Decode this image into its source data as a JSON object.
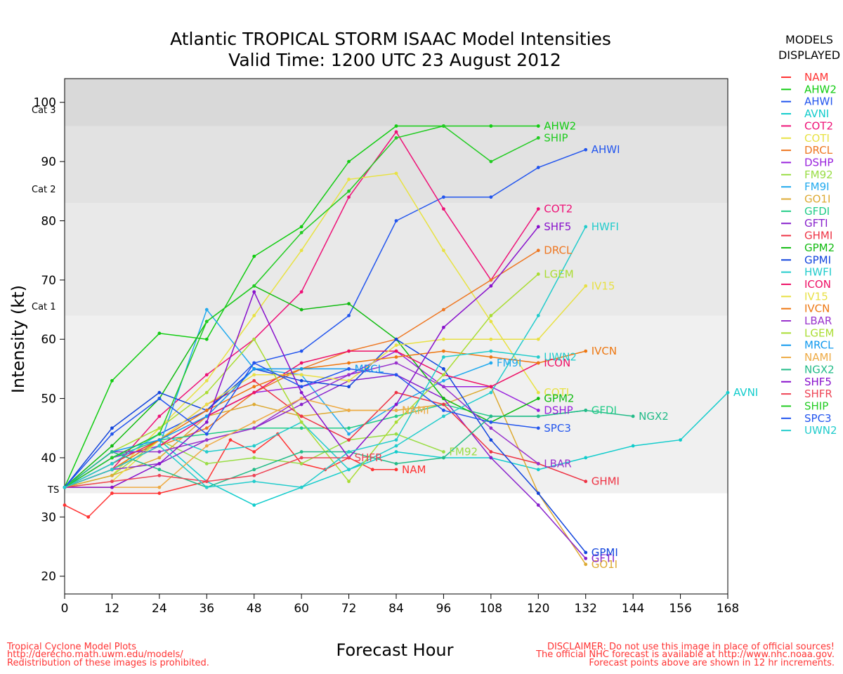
{
  "title_line1": "Atlantic TROPICAL STORM ISAAC Model Intensities",
  "title_line2": "Valid Time: 1200 UTC 23 August 2012",
  "legend_title_line1": "MODELS",
  "legend_title_line2": "DISPLAYED",
  "category_labels": {
    "cat3": "Cat 3",
    "cat2": "Cat 2",
    "cat1": "Cat 1",
    "ts": "TS"
  },
  "footer_left": [
    "Tropical Cyclone Model Plots",
    "http://derecho.math.uwm.edu/models/",
    "Redistribution of these images is prohibited."
  ],
  "footer_right": [
    "DISCLAIMER: Do not use this image in place of official sources!",
    "The official NHC forecast is available at http://www.nhc.noaa.gov.",
    "Forecast points above are shown in 12 hr increments."
  ],
  "chart_data": {
    "type": "line",
    "title": "Atlantic TROPICAL STORM ISAAC Model Intensities",
    "subtitle": "Valid Time: 1200 UTC 23 August 2012",
    "xlabel": "Forecast Hour",
    "ylabel": "Intensity (kt)",
    "xlim": [
      0,
      168
    ],
    "ylim": [
      17,
      104
    ],
    "xticks": [
      0,
      12,
      24,
      36,
      48,
      60,
      72,
      84,
      96,
      108,
      120,
      132,
      144,
      156,
      168
    ],
    "yticks": [
      20,
      30,
      40,
      50,
      60,
      70,
      80,
      90,
      100
    ],
    "bands": [
      {
        "from": 34,
        "to": 64,
        "color": "#f0f0f0"
      },
      {
        "from": 64,
        "to": 83,
        "color": "#e9e9e9"
      },
      {
        "from": 83,
        "to": 96,
        "color": "#e2e2e2"
      },
      {
        "from": 96,
        "to": 104,
        "color": "#d9d9d9"
      }
    ],
    "category_levels": {
      "cat3": 96,
      "cat2": 83,
      "cat1": 64,
      "ts": 34
    },
    "series": [
      {
        "name": "NAM",
        "color": "#ff3333",
        "label": "NAM",
        "x": [
          0,
          6,
          12,
          24,
          36,
          42,
          48,
          54,
          60,
          66,
          72,
          78,
          84
        ],
        "values": [
          32,
          30,
          34,
          34,
          36,
          43,
          41,
          44,
          39,
          38,
          40,
          38,
          38
        ]
      },
      {
        "name": "AHW2",
        "color": "#11cc11",
        "label": "AHW2",
        "x": [
          0,
          12,
          24,
          36,
          48,
          60,
          72,
          84,
          96,
          108,
          120
        ],
        "values": [
          35,
          53,
          61,
          60,
          74,
          79,
          90,
          96,
          96,
          96,
          96
        ]
      },
      {
        "name": "AHWI",
        "color": "#2255ee",
        "label": "AHWI",
        "x": [
          0,
          12,
          24,
          36,
          48,
          60,
          72,
          84,
          96,
          108,
          120,
          132
        ],
        "values": [
          35,
          40,
          44,
          48,
          56,
          58,
          64,
          80,
          84,
          84,
          89,
          92
        ]
      },
      {
        "name": "AVNI",
        "color": "#11cccc",
        "label": "AVNI",
        "x": [
          0,
          12,
          24,
          36,
          48,
          60,
          72,
          84,
          96,
          108,
          120,
          132,
          144,
          156,
          168
        ],
        "values": [
          35,
          39,
          43,
          36,
          32,
          35,
          38,
          41,
          40,
          40,
          38,
          40,
          42,
          43,
          51
        ]
      },
      {
        "name": "COT2",
        "color": "#ee1177",
        "label": "COT2",
        "x": [
          0,
          12,
          24,
          36,
          48,
          60,
          72,
          84,
          96,
          108,
          120
        ],
        "values": [
          35,
          38,
          47,
          54,
          60,
          68,
          84,
          95,
          82,
          70,
          82
        ]
      },
      {
        "name": "COTI",
        "color": "#e8e244",
        "label": "COTI",
        "x": [
          0,
          12,
          24,
          36,
          48,
          60,
          72,
          84,
          96,
          108,
          120
        ],
        "values": [
          35,
          37,
          45,
          53,
          64,
          75,
          87,
          88,
          75,
          63,
          51
        ]
      },
      {
        "name": "DRCL",
        "color": "#ee7722",
        "label": "DRCL",
        "x": [
          0,
          12,
          24,
          36,
          48,
          60,
          72,
          84,
          96,
          108,
          120
        ],
        "values": [
          35,
          38,
          42,
          45,
          51,
          55,
          58,
          60,
          65,
          70,
          75
        ]
      },
      {
        "name": "DSHP",
        "color": "#9922dd",
        "label": "DSHP",
        "x": [
          0,
          12,
          24,
          36,
          48,
          60,
          72,
          84,
          96,
          108,
          120
        ],
        "values": [
          35,
          40,
          42,
          47,
          51,
          52,
          54,
          58,
          52,
          52,
          48
        ]
      },
      {
        "name": "FM92",
        "color": "#99dd44",
        "label": "FM92",
        "x": [
          0,
          12,
          24,
          36,
          48,
          60,
          72,
          84,
          96
        ],
        "values": [
          35,
          37,
          43,
          39,
          40,
          39,
          43,
          44,
          41
        ]
      },
      {
        "name": "FM9I",
        "color": "#22aaee",
        "label": "FM9I",
        "x": [
          0,
          12,
          24,
          36,
          48,
          60,
          72,
          84,
          96,
          108
        ],
        "values": [
          35,
          38,
          42,
          65,
          55,
          54,
          44,
          49,
          53,
          56
        ]
      },
      {
        "name": "GO1I",
        "color": "#ddaa33",
        "label": "GO1I",
        "x": [
          0,
          12,
          24,
          36,
          48,
          60,
          72,
          84,
          96,
          108,
          120,
          132
        ],
        "values": [
          35,
          37,
          40,
          47,
          49,
          47,
          48,
          48,
          49,
          52,
          34,
          22
        ]
      },
      {
        "name": "GFDI",
        "color": "#22cc88",
        "label": "GFDI",
        "x": [
          0,
          12,
          24,
          36,
          48,
          60,
          72,
          84,
          96,
          108,
          120,
          132
        ],
        "values": [
          35,
          40,
          43,
          44,
          45,
          45,
          45,
          47,
          49,
          47,
          47,
          48
        ]
      },
      {
        "name": "GFTI",
        "color": "#8822cc",
        "label": "GFTI",
        "x": [
          0,
          12,
          24,
          36,
          48,
          60,
          72,
          84,
          96,
          108,
          120,
          132
        ],
        "values": [
          35,
          38,
          39,
          43,
          45,
          49,
          53,
          54,
          50,
          40,
          32,
          23
        ]
      },
      {
        "name": "GHMI",
        "color": "#ee3344",
        "label": "GHMI",
        "x": [
          0,
          12,
          24,
          36,
          48,
          60,
          72,
          84,
          96,
          108,
          120,
          132
        ],
        "values": [
          35,
          39,
          43,
          49,
          53,
          47,
          43,
          51,
          49,
          41,
          39,
          36
        ]
      },
      {
        "name": "GPM2",
        "color": "#11bb11",
        "label": "GPM2",
        "x": [
          0,
          12,
          24,
          36,
          48,
          60,
          72,
          84,
          96,
          108,
          120
        ],
        "values": [
          35,
          42,
          50,
          63,
          69,
          65,
          66,
          60,
          50,
          46,
          50
        ]
      },
      {
        "name": "GPMI",
        "color": "#1144dd",
        "label": "GPMI",
        "x": [
          0,
          12,
          24,
          36,
          48,
          60,
          72,
          84,
          96,
          108,
          120,
          132
        ],
        "values": [
          35,
          45,
          51,
          48,
          55,
          53,
          52,
          60,
          55,
          43,
          34,
          24
        ]
      },
      {
        "name": "HWFI",
        "color": "#22cccc",
        "label": "HWFI",
        "x": [
          0,
          12,
          24,
          36,
          48,
          60,
          72,
          84,
          96,
          108,
          120,
          132
        ],
        "values": [
          35,
          39,
          44,
          41,
          42,
          46,
          38,
          42,
          47,
          51,
          64,
          79
        ]
      },
      {
        "name": "ICON",
        "color": "#ee1166",
        "label": "ICON",
        "x": [
          0,
          12,
          24,
          36,
          48,
          60,
          72,
          84,
          96,
          108,
          120
        ],
        "values": [
          35,
          38,
          42,
          47,
          51,
          56,
          58,
          58,
          54,
          52,
          56
        ]
      },
      {
        "name": "IV15",
        "color": "#e8e044",
        "label": "IV15",
        "x": [
          0,
          12,
          24,
          36,
          48,
          60,
          72,
          84,
          96,
          108,
          120,
          132
        ],
        "values": [
          35,
          36,
          43,
          49,
          54,
          54,
          53,
          59,
          60,
          60,
          60,
          69
        ]
      },
      {
        "name": "IVCN",
        "color": "#ee7711",
        "label": "IVCN",
        "x": [
          0,
          12,
          24,
          36,
          48,
          60,
          72,
          84,
          96,
          108,
          120,
          132
        ],
        "values": [
          35,
          38,
          43,
          48,
          52,
          55,
          56,
          57,
          58,
          57,
          56,
          58
        ]
      },
      {
        "name": "LBAR",
        "color": "#9933cc",
        "label": "LBAR",
        "x": [
          0,
          12,
          24,
          36,
          48,
          60,
          72,
          84,
          96,
          108,
          120
        ],
        "values": [
          35,
          41,
          41,
          43,
          45,
          50,
          54,
          56,
          52,
          45,
          39
        ]
      },
      {
        "name": "LGEM",
        "color": "#aadd33",
        "label": "LGEM",
        "x": [
          0,
          12,
          24,
          36,
          48,
          60,
          72,
          84,
          96,
          108,
          120
        ],
        "values": [
          35,
          41,
          45,
          51,
          60,
          46,
          36,
          46,
          54,
          64,
          71
        ]
      },
      {
        "name": "MRCL",
        "color": "#1199ee",
        "label": "MRCL",
        "x": [
          0,
          12,
          24,
          36,
          48,
          60,
          72
        ],
        "values": [
          35,
          41,
          43,
          47,
          55,
          55,
          55
        ]
      },
      {
        "name": "NAMI",
        "color": "#eeaa44",
        "label": "NAMI",
        "x": [
          0,
          12,
          24,
          36,
          48,
          60,
          72,
          84
        ],
        "values": [
          35,
          35,
          35,
          42,
          46,
          50,
          48,
          48
        ]
      },
      {
        "name": "NGX2",
        "color": "#22bb88",
        "label": "NGX2",
        "x": [
          0,
          12,
          24,
          36,
          48,
          60,
          72,
          84,
          96,
          108,
          120,
          132,
          144
        ],
        "values": [
          35,
          41,
          38,
          35,
          38,
          41,
          41,
          39,
          40,
          47,
          47,
          48,
          47
        ]
      },
      {
        "name": "SHF5",
        "color": "#8811cc",
        "label": "SHF5",
        "x": [
          0,
          12,
          24,
          36,
          48,
          60,
          72,
          84,
          96,
          108,
          120
        ],
        "values": [
          35,
          35,
          39,
          46,
          68,
          51,
          40,
          49,
          62,
          69,
          79
        ]
      },
      {
        "name": "SHFR",
        "color": "#ee4455",
        "label": "SHFR",
        "x": [
          0,
          12,
          24,
          36,
          48,
          60,
          72
        ],
        "values": [
          35,
          36,
          37,
          36,
          37,
          40,
          40
        ]
      },
      {
        "name": "SHIP",
        "color": "#22cc22",
        "label": "SHIP",
        "x": [
          0,
          12,
          24,
          36,
          48,
          60,
          72,
          84,
          96,
          108,
          120
        ],
        "values": [
          35,
          40,
          44,
          63,
          69,
          78,
          85,
          94,
          96,
          90,
          94
        ]
      },
      {
        "name": "SPC3",
        "color": "#2255ee",
        "label": "SPC3",
        "x": [
          0,
          12,
          24,
          36,
          48,
          60,
          72,
          84,
          96,
          108,
          120
        ],
        "values": [
          35,
          44,
          50,
          44,
          56,
          52,
          55,
          54,
          48,
          46,
          45
        ]
      },
      {
        "name": "UWN2",
        "color": "#22cccc",
        "label": "UWN2",
        "x": [
          0,
          12,
          24,
          36,
          48,
          60,
          72,
          84,
          96,
          108,
          120
        ],
        "values": [
          35,
          38,
          42,
          35,
          36,
          35,
          41,
          43,
          57,
          58,
          57
        ]
      }
    ]
  }
}
